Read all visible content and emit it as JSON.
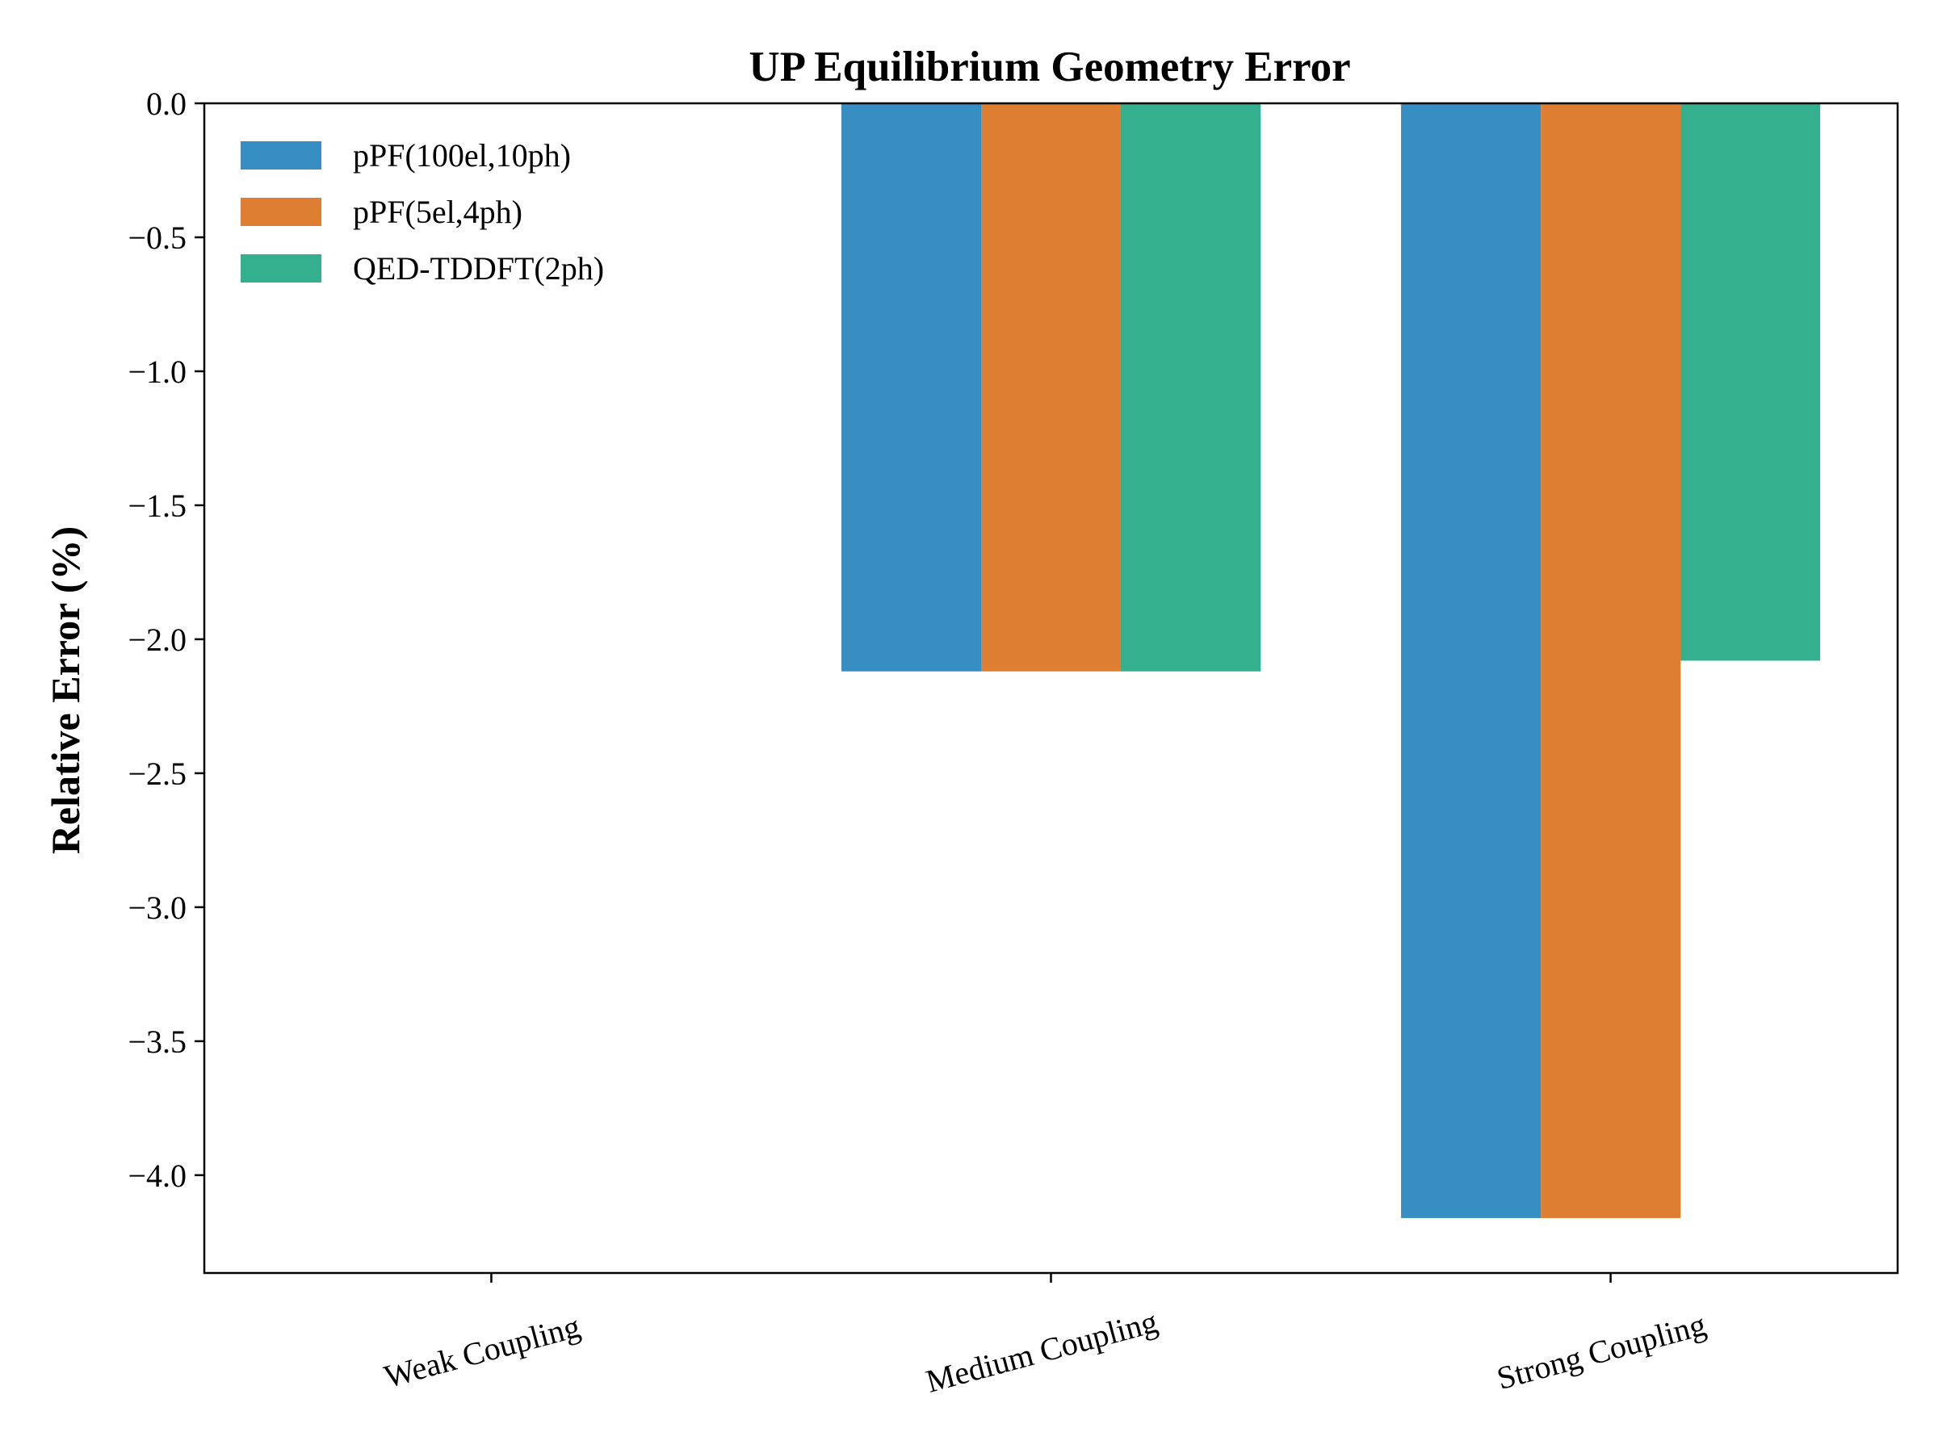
{
  "chart_data": {
    "type": "bar",
    "title": "UP Equilibrium Geometry Error",
    "xlabel": "",
    "ylabel": "Relative Error (%)",
    "categories": [
      "Weak Coupling",
      "Medium Coupling",
      "Strong Coupling"
    ],
    "series": [
      {
        "name": "pPF(100el,10ph)",
        "color": "#368ec2",
        "values": [
          0.0,
          -2.12,
          -4.16
        ]
      },
      {
        "name": "pPF(5el,4ph)",
        "color": "#de7e33",
        "values": [
          0.0,
          -2.12,
          -4.16
        ]
      },
      {
        "name": "QED-TDDFT(2ph)",
        "color": "#35b08f",
        "values": [
          0.0,
          -2.12,
          -2.08
        ]
      }
    ],
    "ylim": [
      -4.365,
      0.0
    ],
    "yticks": [
      0.0,
      -0.5,
      -1.0,
      -1.5,
      -2.0,
      -2.5,
      -3.0,
      -3.5,
      -4.0
    ],
    "ytick_labels": [
      "0.0",
      "−0.5",
      "−1.0",
      "−1.5",
      "−2.0",
      "−2.5",
      "−3.0",
      "−3.5",
      "−4.0"
    ],
    "grid": false,
    "legend_position": "top-left"
  }
}
